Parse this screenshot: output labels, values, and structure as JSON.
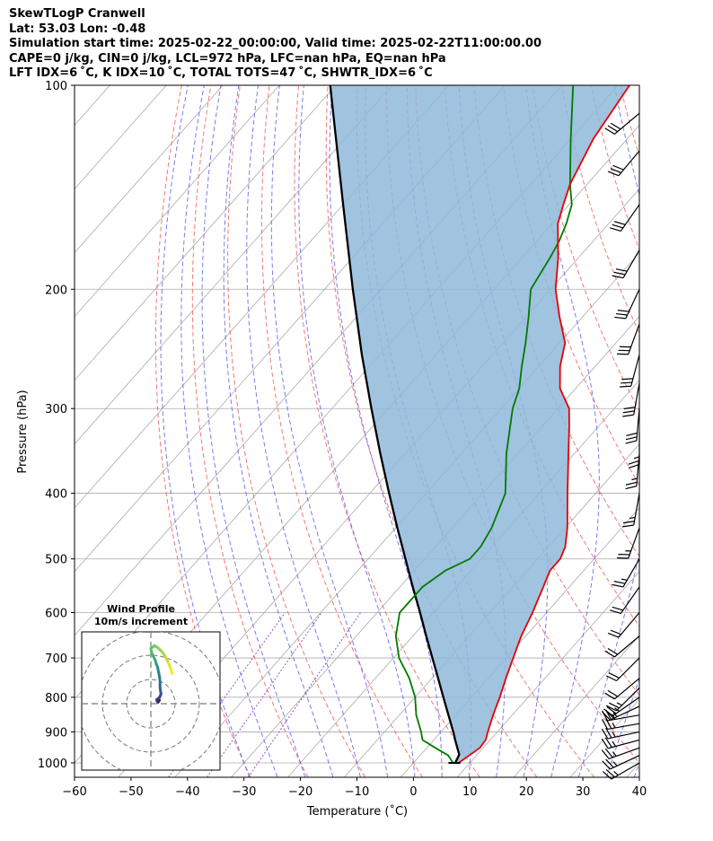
{
  "header": {
    "line1": "SkewTLogP Cranwell",
    "line2": "Lat: 53.03   Lon: -0.48",
    "line3": "Simulation start time: 2025-02-22_00:00:00, Valid time: 2025-02-22T11:00:00.00",
    "line4": "CAPE=0 j/kg, CIN=0 j/kg, LCL=972 hPa, LFC=nan hPa, EQ=nan hPa",
    "line5": "LFT IDX=6 ˚C, K IDX=10 ˚C, TOTAL TOTS=47 ˚C, SHWTR_IDX=6 ˚C"
  },
  "chart_data": {
    "type": "line",
    "xlabel": "Temperature (˚C)",
    "ylabel": "Pressure (hPa)",
    "xlim": [
      -60,
      40
    ],
    "ylim": [
      1050,
      100
    ],
    "x_ticks": [
      -60,
      -50,
      -40,
      -30,
      -20,
      -10,
      0,
      10,
      20,
      30,
      40
    ],
    "x_tick_labels": [
      "−60",
      "−50",
      "−40",
      "−30",
      "−20",
      "−10",
      "0",
      "10",
      "20",
      "30",
      "40"
    ],
    "y_ticks": [
      1000,
      900,
      800,
      700,
      600,
      500,
      400,
      300,
      200,
      100
    ],
    "y_tick_labels": [
      "1000",
      "900",
      "800",
      "700",
      "600",
      "500",
      "400",
      "300",
      "200",
      "100"
    ],
    "y_scale": "log",
    "grid": true,
    "colors": {
      "temperature": "#e60000",
      "dewpoint": "#007a00",
      "parcel": "#000000",
      "cin_fill": "#8fb8da",
      "dry_adiabat": "#f06060",
      "moist_adiabat": "#5a5aee",
      "mixing_ratio": "#9440c0",
      "isotherm": "#aaaaaa"
    },
    "temperature": {
      "pressure": [
        1000,
        975,
        950,
        925,
        900,
        850,
        800,
        750,
        700,
        650,
        600,
        550,
        520,
        500,
        480,
        450,
        400,
        350,
        320,
        300,
        280,
        260,
        240,
        220,
        200,
        180,
        160,
        150,
        140,
        120,
        100
      ],
      "values": [
        8.0,
        8.7,
        9.4,
        9.2,
        8.3,
        6.6,
        5.0,
        3.1,
        1.2,
        -0.8,
        -2.5,
        -4.6,
        -6.0,
        -6.0,
        -7.0,
        -9.6,
        -15.0,
        -21.0,
        -25.0,
        -28.0,
        -32.8,
        -36.2,
        -39.0,
        -44.0,
        -49.1,
        -53.5,
        -59.0,
        -61.0,
        -63.0,
        -66.0,
        -68.0
      ]
    },
    "dewpoint": {
      "pressure": [
        1000,
        975,
        950,
        925,
        900,
        850,
        800,
        750,
        700,
        650,
        600,
        550,
        520,
        500,
        480,
        450,
        400,
        350,
        320,
        300,
        280,
        260,
        240,
        220,
        200,
        180,
        170,
        160,
        150,
        140,
        120,
        100
      ],
      "values": [
        7.0,
        5.0,
        1.5,
        -2.0,
        -3.5,
        -7.0,
        -10.0,
        -14.0,
        -19.0,
        -23.0,
        -26.0,
        -26.0,
        -24.5,
        -22.0,
        -22.0,
        -23.0,
        -26.0,
        -32.0,
        -35.5,
        -38.0,
        -40.0,
        -43.0,
        -46.0,
        -49.5,
        -53.5,
        -55.0,
        -56.0,
        -57.5,
        -59.5,
        -63.0,
        -70.0,
        -78.0
      ]
    },
    "parcel": {
      "pressure": [
        1000,
        972,
        950,
        925,
        900,
        850,
        800,
        750,
        700,
        650,
        600,
        550,
        500,
        450,
        400,
        350,
        300,
        250,
        200,
        150,
        100
      ],
      "values": [
        7.4,
        6.8,
        5.4,
        3.8,
        2.2,
        -1.3,
        -5.0,
        -8.9,
        -13.1,
        -17.6,
        -22.4,
        -27.7,
        -33.4,
        -39.7,
        -46.6,
        -54.3,
        -63.0,
        -73.1,
        -85.0,
        -100.0,
        -121.0
      ]
    },
    "wind_barbs": {
      "pressure": [
        1000,
        975,
        950,
        925,
        900,
        875,
        850,
        825,
        800,
        775,
        750,
        700,
        650,
        600,
        550,
        500,
        450,
        400,
        350,
        325,
        300,
        275,
        250,
        225,
        200,
        175,
        150,
        125,
        110
      ],
      "speed_kt": [
        25,
        25,
        25,
        25,
        25,
        25,
        25,
        25,
        25,
        25,
        20,
        20,
        20,
        20,
        20,
        25,
        25,
        25,
        25,
        25,
        30,
        30,
        30,
        30,
        30,
        30,
        30,
        30,
        30
      ],
      "direction_deg": [
        240,
        245,
        250,
        255,
        258,
        260,
        260,
        245,
        235,
        225,
        230,
        225,
        230,
        220,
        215,
        210,
        200,
        190,
        185,
        180,
        185,
        190,
        195,
        200,
        205,
        210,
        215,
        220,
        230
      ]
    },
    "hodograph": {
      "title": "Wind Profile",
      "subtitle": "10m/s increment",
      "rings_ms": [
        10,
        20,
        30
      ],
      "range_ms": 30,
      "u_ms": [
        3.0,
        3.5,
        3.2,
        2.6,
        2.4,
        3.6,
        4.2,
        4.0,
        3.8,
        3.8,
        3.6,
        3.2,
        2.8,
        2.2,
        1.8,
        1.0,
        0.4,
        0.0,
        1.5,
        3.0,
        4.5,
        6.0,
        7.2,
        8.2,
        8.8
      ],
      "v_ms": [
        0.6,
        1.4,
        1.2,
        1.0,
        1.6,
        2.6,
        4.0,
        5.2,
        6.8,
        9.0,
        11.0,
        13.0,
        15.0,
        16.6,
        18.0,
        19.6,
        21.0,
        22.8,
        24.0,
        23.0,
        21.6,
        19.4,
        17.0,
        14.5,
        12.5
      ]
    }
  }
}
